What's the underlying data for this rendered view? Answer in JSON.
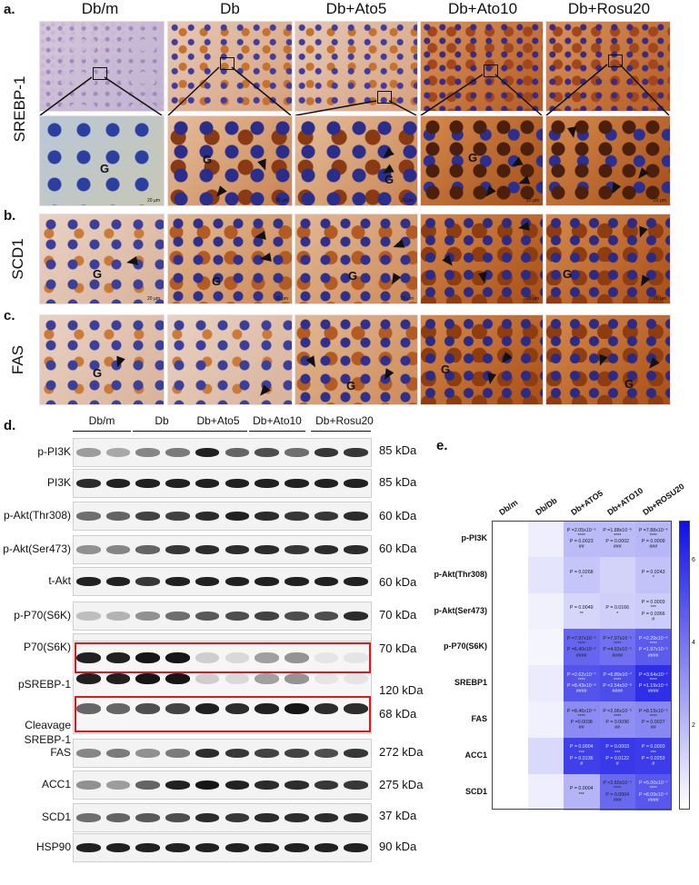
{
  "panels": {
    "a": "a.",
    "b": "b.",
    "c": "c.",
    "d": "d.",
    "e": "e."
  },
  "groups": [
    "Db/m",
    "Db",
    "Db+Ato5",
    "Db+Ato10",
    "Db+Rosu20"
  ],
  "stain_rows": {
    "srebp": "SREBP-1",
    "scd1": "SCD1",
    "fas": "FAS"
  },
  "glomerulus_label": "G",
  "scale_bar_text": "20 µm",
  "western": {
    "group_headers": [
      "Db/m",
      "Db",
      "Db+Ato5",
      "Db+Ato10",
      "Db+Rosu20"
    ],
    "rows": [
      {
        "name": "p-PI3K",
        "kda": "85 kDa",
        "intensity": [
          0.35,
          0.3,
          0.45,
          0.5,
          0.9,
          0.6,
          0.7,
          0.55,
          0.8,
          0.8
        ]
      },
      {
        "name": "PI3K",
        "kda": "85 kDa",
        "intensity": [
          0.85,
          0.9,
          0.9,
          0.9,
          0.9,
          0.9,
          0.9,
          0.9,
          0.9,
          0.9
        ]
      },
      {
        "name": "p-Akt(Thr308)",
        "kda": "60 kDa",
        "intensity": [
          0.55,
          0.6,
          0.75,
          0.75,
          0.85,
          0.9,
          0.85,
          0.8,
          0.8,
          0.85
        ]
      },
      {
        "name": "p-Akt(Ser473)",
        "kda": "60 kDa",
        "intensity": [
          0.4,
          0.45,
          0.6,
          0.8,
          0.85,
          0.85,
          0.85,
          0.8,
          0.85,
          0.85
        ]
      },
      {
        "name": "t-Akt",
        "kda": "60 kDa",
        "intensity": [
          0.9,
          0.9,
          0.8,
          0.9,
          0.9,
          0.9,
          0.9,
          0.9,
          0.9,
          0.9
        ]
      },
      {
        "name": "p-P70(S6K)",
        "kda": "70 kDa",
        "intensity": [
          0.2,
          0.25,
          0.4,
          0.55,
          0.65,
          0.7,
          0.75,
          0.7,
          0.7,
          0.85
        ]
      },
      {
        "name": "P70(S6K)",
        "kda": "70 kDa",
        "intensity": [
          0.85,
          0.9,
          0.9,
          0.9,
          0.9,
          0.9,
          0.9,
          0.9,
          0.9,
          0.9
        ]
      },
      {
        "name": "pSREBP-1",
        "kda": "120 kDa",
        "intensity": [
          0.9,
          0.9,
          0.95,
          0.95,
          0.15,
          0.1,
          0.35,
          0.4,
          0.05,
          0.05
        ]
      },
      {
        "name": "Cleavage SREBP-1",
        "kda": "68 kDa",
        "intensity": [
          0.6,
          0.6,
          0.7,
          0.75,
          0.9,
          0.85,
          0.9,
          0.95,
          0.85,
          0.85
        ]
      },
      {
        "name": "FAS",
        "kda": "272 kDa",
        "intensity": [
          0.45,
          0.5,
          0.4,
          0.5,
          0.85,
          0.8,
          0.75,
          0.75,
          0.7,
          0.8
        ]
      },
      {
        "name": "ACC1",
        "kda": "275 kDa",
        "intensity": [
          0.4,
          0.35,
          0.6,
          0.9,
          0.95,
          0.9,
          0.85,
          0.85,
          0.8,
          0.8
        ]
      },
      {
        "name": "SCD1",
        "kda": "37 kDa",
        "intensity": [
          0.55,
          0.6,
          0.65,
          0.7,
          0.85,
          0.8,
          0.85,
          0.85,
          0.85,
          0.85
        ]
      },
      {
        "name": "HSP90",
        "kda": "90 kDa",
        "intensity": [
          0.9,
          0.9,
          0.9,
          0.9,
          0.9,
          0.9,
          0.9,
          0.9,
          0.9,
          0.9
        ]
      }
    ]
  },
  "heatmap": {
    "columns": [
      "Db/m",
      "Db/Db",
      "Db+ATO5",
      "Db+ATO10",
      "Db+ROSU20"
    ],
    "rows": [
      "p-PI3K",
      "p-Akt(Thr308)",
      "p-Akt(Ser473)",
      "p-P70(S6K)",
      "SREBP1",
      "FAS",
      "ACC1",
      "SCD1"
    ],
    "values": [
      [
        0,
        0.5,
        2.0,
        2.0,
        2.1
      ],
      [
        0,
        0.8,
        1.7,
        1.3,
        1.8
      ],
      [
        0,
        0.4,
        1.2,
        1.4,
        1.5
      ],
      [
        0,
        0.3,
        4.5,
        4.2,
        4.8
      ],
      [
        0,
        0.6,
        5.0,
        5.2,
        6.1
      ],
      [
        0,
        0.4,
        3.4,
        3.3,
        3.5
      ],
      [
        0,
        1.1,
        5.6,
        5.8,
        5.7
      ],
      [
        0,
        0.5,
        2.2,
        4.4,
        4.9
      ]
    ],
    "annotations": [
      [
        "",
        "",
        "P =2.05x10⁻⁵\n****\nP = 0.0023\n##",
        "P =1.88x10⁻⁶\n****\nP = 0.0002\n###",
        "P =7.88x10⁻⁶\n****\nP = 0.0009\n###"
      ],
      [
        "",
        "",
        "P = 0.0268\n*",
        "",
        "P = 0.0243\n*"
      ],
      [
        "",
        "",
        "P = 0.0049\n**",
        "P = 0.0166\n*",
        "P = 0.0003\n***\nP = 0.0366\n#"
      ],
      [
        "",
        "",
        "P =7.97x10⁻⁶\n****\nP =6.40x10⁻⁶\n####",
        "P =7.97x10⁻⁶\n****\nP =4.92x10⁻⁵\n####",
        "P =2.29x10⁻⁶\n****\nP =1.97x10⁻⁵\n####"
      ],
      [
        "",
        "",
        "P =2.62x10⁻⁷\n****\nP =8.43x10⁻⁶\n####",
        "P =6.89x10⁻⁷\n****\nP =2.54x10⁻⁶\n####",
        "P =3.64x10⁻⁷\n****\nP =1.19x10⁻⁶\n####"
      ],
      [
        "",
        "",
        "P =8.46x10⁻⁶\n****\nP =0.0038\n##",
        "P =2.06x10⁻⁵\n****\nP = 0.0096\n##",
        "P =8.19x10⁻⁶\n****\nP = 0.0027\n##"
      ],
      [
        "",
        "",
        "P = 0.0004\n***\nP = 0.0136\n#",
        "P = 0.0003\n***\nP = 0.0122\n#",
        "P = 0.0003\n***\nP = 0.0253\n#"
      ],
      [
        "",
        "",
        "P = 0.0004\n***",
        "P =2.60x10⁻⁵\n****\nP = 0.0004\n###",
        "P =5.00x10⁻⁷\n****\nP =8.09x10⁻⁶\n####"
      ]
    ],
    "colorbar_ticks": [
      "6",
      "4",
      "2"
    ],
    "colormap": {
      "low": "#ffffff",
      "high": "#1010e6"
    },
    "value_range": [
      0,
      7
    ]
  }
}
